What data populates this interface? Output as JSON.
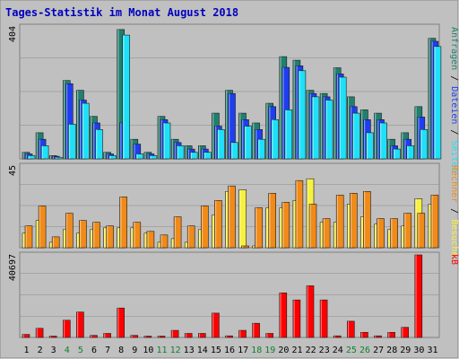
{
  "chart_data": {
    "type": "bar",
    "title": "Tages-Statistik im Monat August 2018",
    "categories": [
      "1",
      "2",
      "3",
      "4",
      "5",
      "6",
      "7",
      "8",
      "9",
      "10",
      "11",
      "12",
      "13",
      "14",
      "15",
      "16",
      "17",
      "18",
      "19",
      "20",
      "21",
      "22",
      "23",
      "24",
      "25",
      "26",
      "27",
      "28",
      "29",
      "30",
      "31"
    ],
    "weekend_days": [
      "4",
      "5",
      "11",
      "12",
      "18",
      "19",
      "25",
      "26"
    ],
    "colors": {
      "background": "#c0c0c0",
      "frame": "#888888",
      "title": "#0000c0",
      "anfragen": "#20806e",
      "dateien": "#1e3ef0",
      "seiten": "#1ee0f8",
      "besuche": "#f8f040",
      "rechner": "#f08a18",
      "kb": "#ff0000",
      "weekday": "#000000",
      "weekend": "#108030"
    },
    "panels": [
      {
        "id": "top",
        "ymax_label": "404",
        "ylim": [
          0,
          404
        ],
        "legend": [
          {
            "text": "Anfragen",
            "color": "#20806e"
          },
          {
            "text": " / ",
            "color": "#000000"
          },
          {
            "text": "Dateien",
            "color": "#1e3ef0"
          },
          {
            "text": " / ",
            "color": "#000000"
          },
          {
            "text": "Seiten",
            "color": "#1ee0f8"
          }
        ],
        "series": [
          {
            "name": "Anfragen",
            "color": "#20806e",
            "values": [
              20,
              80,
              10,
              240,
              210,
              130,
              20,
              396,
              60,
              20,
              130,
              60,
              40,
              40,
              140,
              210,
              140,
              110,
              170,
              313,
              302,
              210,
              200,
              279,
              190,
              150,
              140,
              60,
              80,
              160,
              369
            ]
          },
          {
            "name": "Dateien",
            "color": "#1e3ef0",
            "values": [
              15,
              60,
              8,
              230,
              180,
              110,
              15,
              110,
              45,
              15,
              120,
              50,
              30,
              30,
              100,
              200,
              120,
              90,
              160,
              280,
              285,
              200,
              190,
              260,
              160,
              120,
              120,
              40,
              60,
              128,
              360
            ]
          },
          {
            "name": "Seiten",
            "color": "#1ee0f8",
            "values": [
              10,
              40,
              5,
              106,
              170,
              90,
              10,
              379,
              15,
              10,
              110,
              40,
              20,
              20,
              90,
              50,
              100,
              60,
              120,
              150,
              270,
              190,
              180,
              250,
              140,
              80,
              110,
              30,
              40,
              90,
              344
            ]
          }
        ]
      },
      {
        "id": "mid",
        "ymax_label": "45",
        "ylim": [
          0,
          45
        ],
        "legend": [
          {
            "text": "Rechner",
            "color": "#f08a18"
          },
          {
            "text": " / ",
            "color": "#000000"
          },
          {
            "text": "Besuche",
            "color": "#f8f040"
          }
        ],
        "series": [
          {
            "name": "Besuche",
            "color": "#f8f040",
            "values": [
              8,
              15,
              3,
              10,
              8,
              10,
              11,
              11,
              11,
              8,
              3,
              5,
              3,
              10,
              18,
              31,
              32,
              1,
              22,
              22,
              26,
              38,
              14,
              14,
              24,
              17,
              13,
              10,
              12,
              27,
              24
            ]
          },
          {
            "name": "Rechner",
            "color": "#f08a18",
            "values": [
              12,
              23,
              6,
              19,
              15,
              14,
              12,
              28,
              14,
              9,
              7,
              17,
              12,
              23,
              26,
              34,
              1,
              22,
              30,
              25,
              37,
              24,
              16,
              29,
              30,
              31,
              16,
              16,
              19,
              19,
              29
            ]
          }
        ]
      },
      {
        "id": "bot",
        "ymax_label": "40697",
        "ylim": [
          0,
          40697
        ],
        "legend": [
          {
            "text": "kB",
            "color": "#ff0000"
          }
        ],
        "series": [
          {
            "name": "kB",
            "color": "#ff0000",
            "values": [
              1500,
              4500,
              500,
              8500,
              12500,
              1000,
              2000,
              14500,
              1000,
              500,
              500,
              3500,
              2000,
              2000,
              12000,
              800,
              3500,
              7000,
              2000,
              22000,
              18500,
              25500,
              18500,
              800,
              8000,
              2500,
              800,
              2500,
              5000,
              40697,
              0
            ]
          }
        ]
      }
    ]
  }
}
